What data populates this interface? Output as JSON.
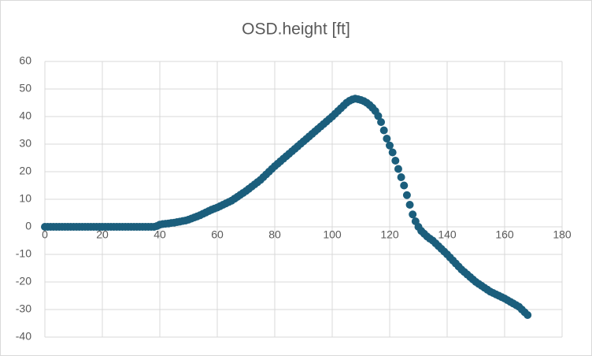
{
  "chart_data": {
    "type": "scatter",
    "title": "OSD.height [ft]",
    "color": "#1b5e7c",
    "grid": true,
    "xlim": [
      0,
      180
    ],
    "xticks": [
      0,
      20,
      40,
      60,
      80,
      100,
      120,
      140,
      160,
      180
    ],
    "ylim": [
      -40,
      60
    ],
    "yticks": [
      -40,
      -30,
      -20,
      -10,
      0,
      10,
      20,
      30,
      40,
      50,
      60
    ],
    "x": [
      0,
      1,
      2,
      3,
      4,
      5,
      6,
      7,
      8,
      9,
      10,
      11,
      12,
      13,
      14,
      15,
      16,
      17,
      18,
      19,
      20,
      21,
      22,
      23,
      24,
      25,
      26,
      27,
      28,
      29,
      30,
      31,
      32,
      33,
      34,
      35,
      36,
      37,
      38,
      39,
      40,
      41,
      42,
      43,
      44,
      45,
      46,
      47,
      48,
      49,
      50,
      51,
      52,
      53,
      54,
      55,
      56,
      57,
      58,
      59,
      60,
      61,
      62,
      63,
      64,
      65,
      66,
      67,
      68,
      69,
      70,
      71,
      72,
      73,
      74,
      75,
      76,
      77,
      78,
      79,
      80,
      81,
      82,
      83,
      84,
      85,
      86,
      87,
      88,
      89,
      90,
      91,
      92,
      93,
      94,
      95,
      96,
      97,
      98,
      99,
      100,
      101,
      102,
      103,
      104,
      105,
      106,
      107,
      108,
      109,
      110,
      111,
      112,
      113,
      114,
      115,
      116,
      117,
      118,
      119,
      120,
      121,
      122,
      123,
      124,
      125,
      126,
      127,
      128,
      129,
      130,
      131,
      132,
      133,
      134,
      135,
      136,
      137,
      138,
      139,
      140,
      141,
      142,
      143,
      144,
      145,
      146,
      147,
      148,
      149,
      150,
      151,
      152,
      153,
      154,
      155,
      156,
      157,
      158,
      159,
      160,
      161,
      162,
      163,
      164,
      165,
      166,
      167,
      168
    ],
    "values": [
      0,
      0,
      0,
      0,
      0,
      0,
      0,
      0,
      0,
      0,
      0,
      0,
      0,
      0,
      0,
      0,
      0,
      0,
      0,
      0,
      0,
      0,
      0,
      0,
      0,
      0,
      0,
      0,
      0,
      0,
      0,
      0,
      0,
      0,
      0,
      0,
      0,
      0,
      0,
      0.3,
      0.8,
      1,
      1.1,
      1.2,
      1.4,
      1.5,
      1.7,
      1.9,
      2.1,
      2.3,
      2.6,
      3,
      3.4,
      3.8,
      4.2,
      4.7,
      5.2,
      5.7,
      6.2,
      6.6,
      7,
      7.5,
      8,
      8.5,
      9,
      9.5,
      10.2,
      10.9,
      11.6,
      12.3,
      13,
      13.8,
      14.6,
      15.4,
      16.2,
      17,
      18,
      19,
      20,
      21,
      22,
      22.9,
      23.8,
      24.7,
      25.6,
      26.5,
      27.4,
      28.3,
      29.2,
      30.1,
      31,
      31.9,
      32.8,
      33.7,
      34.6,
      35.5,
      36.4,
      37.3,
      38.2,
      39.1,
      40,
      41,
      42,
      43,
      44,
      45,
      45.7,
      46.2,
      46.5,
      46.3,
      46,
      45.6,
      45,
      44.2,
      43.2,
      42,
      40.2,
      38,
      35,
      32,
      29.5,
      27,
      24,
      21,
      18,
      15,
      11.5,
      8,
      4.5,
      2,
      0,
      -1.5,
      -2.5,
      -3.5,
      -4.3,
      -5,
      -6,
      -7,
      -8,
      -9,
      -10,
      -11.1,
      -12.2,
      -13.3,
      -14.4,
      -15.5,
      -16.4,
      -17.3,
      -18.2,
      -19.1,
      -20,
      -20.7,
      -21.4,
      -22.1,
      -22.8,
      -23.5,
      -24,
      -24.5,
      -25,
      -25.5,
      -26,
      -26.6,
      -27.2,
      -27.8,
      -28.4,
      -29,
      -30,
      -31,
      -32
    ]
  }
}
